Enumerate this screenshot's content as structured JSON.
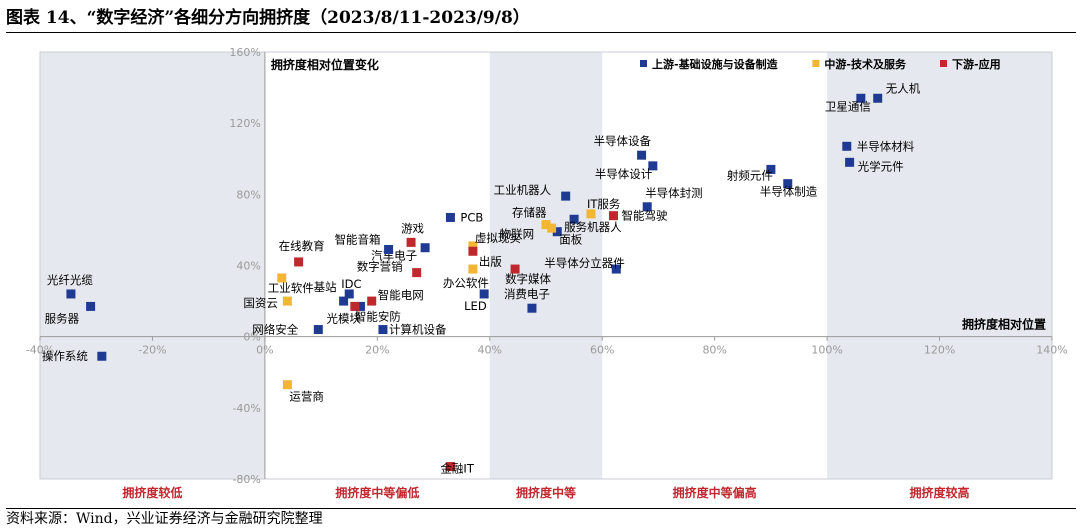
{
  "header": {
    "title": "图表 14、“数字经济”各细分方向拥挤度（2023/8/11-2023/9/8）"
  },
  "footer": {
    "source": "资料来源：Wind，兴业证券经济与金融研究院整理"
  },
  "chart_data": {
    "type": "scatter",
    "title": "拥挤度相对位置变化",
    "xlabel": "拥挤度相对位置",
    "ylabel": "",
    "xlim": [
      -40,
      140
    ],
    "ylim": [
      -80,
      160
    ],
    "x_ticks": [
      "-40%",
      "-20%",
      "0%",
      "20%",
      "40%",
      "60%",
      "80%",
      "100%",
      "120%",
      "140%"
    ],
    "y_ticks": [
      "160%",
      "120%",
      "80%",
      "40%",
      "0%",
      "-40%",
      "-80%"
    ],
    "legend_position": "top-right",
    "series": [
      {
        "name": "上游-基础设施与设备制造",
        "color": "#1f3a93",
        "points": [
          {
            "label": "无人机",
            "x": 109,
            "y": 134
          },
          {
            "label": "卫星通信",
            "x": 106,
            "y": 134
          },
          {
            "label": "半导体材料",
            "x": 103.5,
            "y": 107
          },
          {
            "label": "光学元件",
            "x": 104,
            "y": 98
          },
          {
            "label": "射频元件",
            "x": 90,
            "y": 94
          },
          {
            "label": "半导体制造",
            "x": 93,
            "y": 86
          },
          {
            "label": "半导体设备",
            "x": 67,
            "y": 102
          },
          {
            "label": "半导体设计",
            "x": 69,
            "y": 96
          },
          {
            "label": "半导体封测",
            "x": 68,
            "y": 73
          },
          {
            "label": "工业机器人",
            "x": 53.5,
            "y": 79
          },
          {
            "label": "服务机器人",
            "x": 55,
            "y": 66
          },
          {
            "label": "面板",
            "x": 52,
            "y": 59
          },
          {
            "label": "半导体分立器件",
            "x": 62.5,
            "y": 38
          },
          {
            "label": "消费电子",
            "x": 47.5,
            "y": 16
          },
          {
            "label": "PCB",
            "x": 33,
            "y": 67
          },
          {
            "label": "汽车电子",
            "x": 28.5,
            "y": 50
          },
          {
            "label": "智能音箱",
            "x": 22,
            "y": 49
          },
          {
            "label": "LED",
            "x": 39,
            "y": 24
          },
          {
            "label": "IDC",
            "x": 15,
            "y": 24
          },
          {
            "label": "基站",
            "x": 14,
            "y": 20
          },
          {
            "label": "光纤光缆",
            "x": -34.5,
            "y": 24
          },
          {
            "label": "服务器",
            "x": -31,
            "y": 17
          },
          {
            "label": "光模块",
            "x": 17,
            "y": 17
          },
          {
            "label": "网络安全",
            "x": 9.5,
            "y": 4
          },
          {
            "label": "计算机设备",
            "x": 21,
            "y": 4
          },
          {
            "label": "操作系统",
            "x": -29,
            "y": -11
          }
        ]
      },
      {
        "name": "中游-技术及服务",
        "color": "#f2b632",
        "points": [
          {
            "label": "IT服务",
            "x": 58,
            "y": 69
          },
          {
            "label": "存储器",
            "x": 50,
            "y": 63
          },
          {
            "label": "物联网",
            "x": 51,
            "y": 61
          },
          {
            "label": "虚拟现实",
            "x": 37,
            "y": 51
          },
          {
            "label": "办公软件",
            "x": 37,
            "y": 38
          },
          {
            "label": "工业软件",
            "x": 3,
            "y": 33
          },
          {
            "label": "国资云",
            "x": 4,
            "y": 20
          },
          {
            "label": "运营商",
            "x": 4,
            "y": -27
          }
        ]
      },
      {
        "name": "下游-应用",
        "color": "#c0282d",
        "points": [
          {
            "label": "智能驾驶",
            "x": 62,
            "y": 68
          },
          {
            "label": "游戏",
            "x": 26,
            "y": 53
          },
          {
            "label": "在线教育",
            "x": 6,
            "y": 42
          },
          {
            "label": "出版",
            "x": 37,
            "y": 48
          },
          {
            "label": "数字营销",
            "x": 27,
            "y": 36
          },
          {
            "label": "数字媒体",
            "x": 44.5,
            "y": 38
          },
          {
            "label": "智能电网",
            "x": 19,
            "y": 20
          },
          {
            "label": "智能安防",
            "x": 16,
            "y": 17
          },
          {
            "label": "金融IT",
            "x": 33,
            "y": -73
          }
        ]
      }
    ],
    "zones": [
      {
        "label": "拥挤度较低",
        "x_from": -40,
        "x_to": 0
      },
      {
        "label": "拥挤度中等偏低",
        "x_from": 0,
        "x_to": 40
      },
      {
        "label": "拥挤度中等",
        "x_from": 40,
        "x_to": 60
      },
      {
        "label": "拥挤度中等偏高",
        "x_from": 60,
        "x_to": 100
      },
      {
        "label": "拥挤度较高",
        "x_from": 100,
        "x_to": 140
      }
    ]
  }
}
